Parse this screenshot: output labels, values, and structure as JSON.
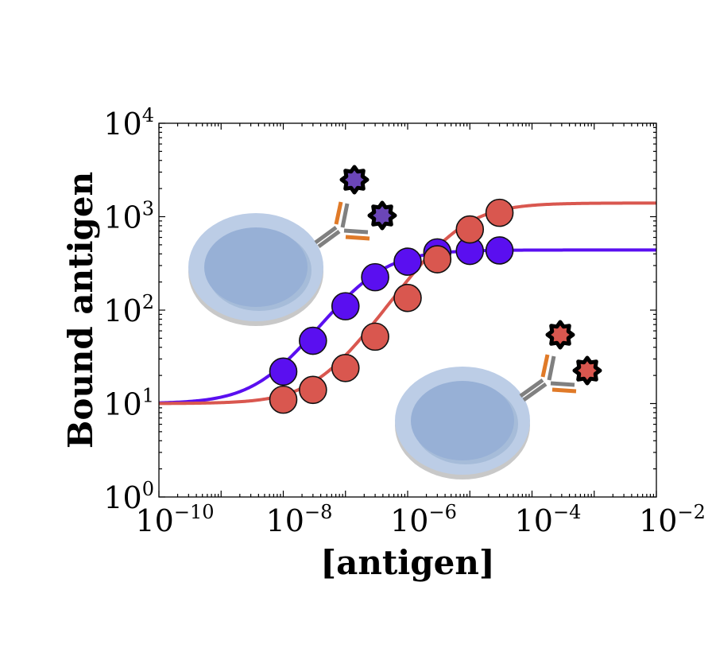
{
  "chart_data": {
    "type": "scatter",
    "xscale": "log",
    "yscale": "log",
    "xlim": [
      1e-10,
      0.01
    ],
    "ylim": [
      1,
      10000
    ],
    "xlabel": "[antigen]",
    "ylabel": "Bound antigen",
    "x_ticks": [
      {
        "base": "10",
        "exp": "−10",
        "value": 1e-10
      },
      {
        "base": "10",
        "exp": "−8",
        "value": 1e-08
      },
      {
        "base": "10",
        "exp": "−6",
        "value": 1e-06
      },
      {
        "base": "10",
        "exp": "−4",
        "value": 0.0001
      },
      {
        "base": "10",
        "exp": "−2",
        "value": 0.01
      }
    ],
    "y_ticks": [
      {
        "base": "10",
        "exp": "0",
        "value": 1
      },
      {
        "base": "10",
        "exp": "1",
        "value": 10
      },
      {
        "base": "10",
        "exp": "2",
        "value": 100
      },
      {
        "base": "10",
        "exp": "3",
        "value": 1000
      },
      {
        "base": "10",
        "exp": "4",
        "value": 10000
      }
    ],
    "grid": false,
    "series": [
      {
        "color": "#5a0ff0",
        "points": [
          {
            "x": 1e-08,
            "y": 22
          },
          {
            "x": 3e-08,
            "y": 47
          },
          {
            "x": 1e-07,
            "y": 110
          },
          {
            "x": 3e-07,
            "y": 225
          },
          {
            "x": 1e-06,
            "y": 330
          },
          {
            "x": 3e-06,
            "y": 415
          },
          {
            "x": 1e-05,
            "y": 430
          },
          {
            "x": 3e-05,
            "y": 435
          }
        ],
        "fit": {
          "bottom": 10,
          "top": 440,
          "ec50": 2.5e-07,
          "hill": 1
        }
      },
      {
        "color": "#d9574f",
        "points": [
          {
            "x": 1e-08,
            "y": 11
          },
          {
            "x": 3e-08,
            "y": 14
          },
          {
            "x": 1e-07,
            "y": 24
          },
          {
            "x": 3e-07,
            "y": 52
          },
          {
            "x": 1e-06,
            "y": 135
          },
          {
            "x": 3e-06,
            "y": 350
          },
          {
            "x": 1e-05,
            "y": 730
          },
          {
            "x": 3e-05,
            "y": 1100
          }
        ],
        "fit": {
          "bottom": 10,
          "top": 1400,
          "ec50": 6e-06,
          "hill": 1
        }
      }
    ],
    "cells": [
      {
        "name": "cell-with-purple-antigen",
        "star_color": "#6b46b8"
      },
      {
        "name": "cell-with-red-antigen",
        "star_color": "#d9574f"
      }
    ]
  }
}
